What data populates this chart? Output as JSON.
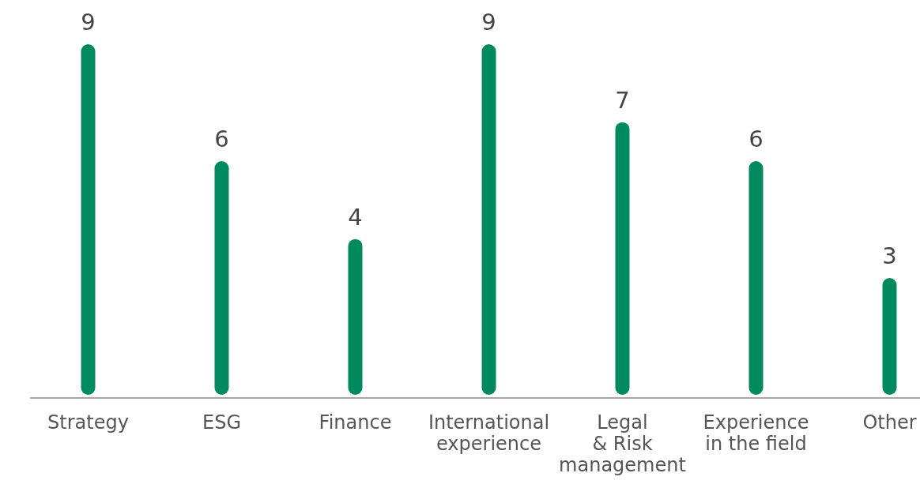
{
  "chart_data": {
    "type": "bar",
    "categories": [
      "Strategy",
      "ESG",
      "Finance",
      "International\nexperience",
      "Legal\n& Risk\nmanagement",
      "Experience\nin the field",
      "Other"
    ],
    "values": [
      9,
      6,
      4,
      9,
      7,
      6,
      3
    ],
    "color": "#008a5e",
    "data_labels": true
  }
}
